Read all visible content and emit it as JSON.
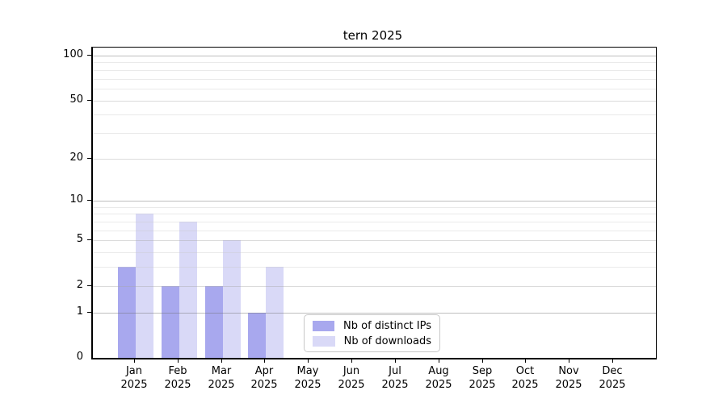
{
  "title": "tern 2025",
  "colors": {
    "distinct_ips": "#a8a8ee",
    "downloads": "#d9d9f7"
  },
  "legend": {
    "items": [
      {
        "label": "Nb of distinct IPs",
        "series": "distinct_ips"
      },
      {
        "label": "Nb of downloads",
        "series": "downloads"
      }
    ]
  },
  "y_axis": {
    "tick_values": [
      0,
      1,
      2,
      5,
      10,
      20,
      50,
      100
    ],
    "tick_labels": [
      "0",
      "1",
      "2",
      "5",
      "10",
      "20",
      "50",
      "100"
    ]
  },
  "x_axis": {
    "months": [
      {
        "label": "Jan",
        "year": "2025"
      },
      {
        "label": "Feb",
        "year": "2025"
      },
      {
        "label": "Mar",
        "year": "2025"
      },
      {
        "label": "Apr",
        "year": "2025"
      },
      {
        "label": "May",
        "year": "2025"
      },
      {
        "label": "Jun",
        "year": "2025"
      },
      {
        "label": "Jul",
        "year": "2025"
      },
      {
        "label": "Aug",
        "year": "2025"
      },
      {
        "label": "Sep",
        "year": "2025"
      },
      {
        "label": "Oct",
        "year": "2025"
      },
      {
        "label": "Nov",
        "year": "2025"
      },
      {
        "label": "Dec",
        "year": "2025"
      }
    ]
  },
  "chart_data": {
    "type": "bar",
    "title": "tern 2025",
    "categories": [
      "Jan 2025",
      "Feb 2025",
      "Mar 2025",
      "Apr 2025",
      "May 2025",
      "Jun 2025",
      "Jul 2025",
      "Aug 2025",
      "Sep 2025",
      "Oct 2025",
      "Nov 2025",
      "Dec 2025"
    ],
    "series": [
      {
        "name": "Nb of distinct IPs",
        "color": "#a8a8ee",
        "values": [
          3,
          2,
          2,
          1,
          0,
          0,
          0,
          0,
          0,
          0,
          0,
          0
        ]
      },
      {
        "name": "Nb of downloads",
        "color": "#d9d9f7",
        "values": [
          8,
          7,
          5,
          3,
          0,
          0,
          0,
          0,
          0,
          0,
          0,
          0
        ]
      }
    ],
    "xlabel": "",
    "ylabel": "",
    "ylim": [
      0,
      100
    ],
    "yscale": "log10(value+1)",
    "yticks": [
      0,
      1,
      2,
      5,
      10,
      20,
      50,
      100
    ],
    "minor_gridlines": [
      3,
      4,
      6,
      7,
      8,
      9,
      30,
      40,
      60,
      70,
      80,
      90
    ],
    "mid_gridlines": [
      2,
      5,
      20,
      50
    ],
    "major_gridlines": [
      1,
      10,
      100
    ],
    "grid": true,
    "legend_position": "inside-bottom-center"
  }
}
